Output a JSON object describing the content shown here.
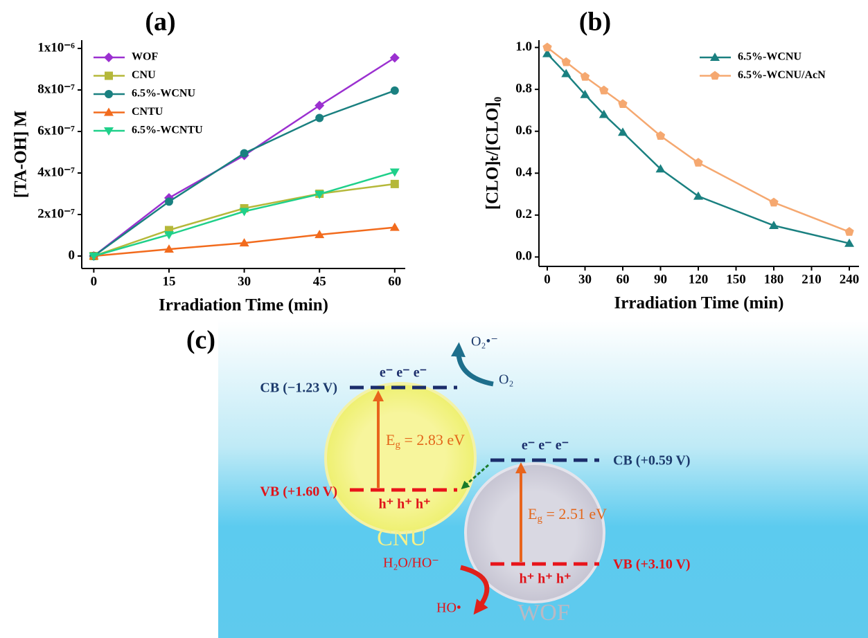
{
  "chart_data": [
    {
      "type": "line",
      "panel_label": "(a)",
      "x_label": "Irradiation Time (min)",
      "y_label": "[TA-OH] M",
      "x": [
        0,
        15,
        30,
        45,
        60
      ],
      "xlim": [
        -2.4,
        62.1
      ],
      "xticks": [
        0,
        15,
        30,
        45,
        60
      ],
      "ylim": [
        -6e-08,
        1.04e-06
      ],
      "yticks": [
        0,
        {
          "value": 2e-07,
          "label": "2x10⁻⁷"
        },
        {
          "value": 4e-07,
          "label": "4x10⁻⁷"
        },
        {
          "value": 6e-07,
          "label": "6x10⁻⁷"
        },
        {
          "value": 8e-07,
          "label": "8x10⁻⁷"
        },
        {
          "value": 1e-06,
          "label": "1x10⁻⁶"
        }
      ],
      "legend": "upper left",
      "series": [
        {
          "name": "WOF",
          "color": "#9b30d0",
          "marker": "diamond",
          "values": [
            0,
            2.8e-07,
            4.85e-07,
            7.25e-07,
            9.55e-07
          ]
        },
        {
          "name": "CNU",
          "color": "#b5b83a",
          "marker": "square",
          "values": [
            0,
            1.25e-07,
            2.3e-07,
            3e-07,
            3.47e-07
          ]
        },
        {
          "name": "6.5%-WCNU",
          "color": "#1a8080",
          "marker": "circle",
          "values": [
            0,
            2.62e-07,
            4.95e-07,
            6.65e-07,
            7.97e-07
          ]
        },
        {
          "name": "CNTU",
          "color": "#f26b1d",
          "marker": "triangle-up",
          "values": [
            0,
            3.3e-08,
            6.3e-08,
            1.03e-07,
            1.38e-07
          ]
        },
        {
          "name": "6.5%-WCNTU",
          "color": "#1fd08a",
          "marker": "triangle-down",
          "values": [
            0,
            1.03e-07,
            2.15e-07,
            2.98e-07,
            4.05e-07
          ]
        }
      ]
    },
    {
      "type": "line",
      "panel_label": "(b)",
      "x_label": "Irradiation Time (min)",
      "y_label": "[CLO]ₜ/[CLO]₀",
      "x": [
        0,
        15,
        30,
        45,
        60,
        90,
        120,
        180,
        240
      ],
      "xlim": [
        -6.6,
        247.7
      ],
      "xticks": [
        0,
        30,
        60,
        90,
        120,
        150,
        180,
        210,
        240
      ],
      "ylim": [
        -0.045,
        1.035
      ],
      "yticks": [
        {
          "value": 0,
          "label": "0.0"
        },
        0.2,
        0.4,
        0.6,
        0.8,
        {
          "value": 1,
          "label": "1.0"
        }
      ],
      "legend": "upper right",
      "series": [
        {
          "name": "6.5%-WCNU",
          "color": "#1a8080",
          "marker": "triangle-up",
          "values": [
            0.97,
            0.875,
            0.775,
            0.68,
            0.595,
            0.42,
            0.29,
            0.15,
            0.065
          ]
        },
        {
          "name": "6.5%-WCNU/AcN",
          "color": "#f5a870",
          "marker": "pentagon",
          "values": [
            1.0,
            0.93,
            0.86,
            0.795,
            0.73,
            0.578,
            0.45,
            0.26,
            0.12
          ]
        }
      ]
    }
  ],
  "diagram": {
    "panel_label": "(c)",
    "cnu": {
      "name": "CNU",
      "cb": "CB (−1.23 V)",
      "vb": "VB (+1.60 V)",
      "electrons": "e⁻ e⁻ e⁻",
      "holes": "h⁺ h⁺ h⁺",
      "eg_symbol": "E",
      "eg_subscript": "g",
      "eg_value": " = 2.83 eV"
    },
    "wof": {
      "name": "WOF",
      "cb": "CB (+0.59 V)",
      "vb": "VB (+3.10 V)",
      "electrons": "e⁻ e⁻ e⁻",
      "holes": "h⁺ h⁺ h⁺",
      "eg_symbol": "E",
      "eg_subscript": "g",
      "eg_value": " = 2.51 eV"
    },
    "superoxide": "O₂•⁻",
    "oxygen": "O₂",
    "water": "H₂O/HO⁻",
    "hydroxyl": "HO•"
  }
}
